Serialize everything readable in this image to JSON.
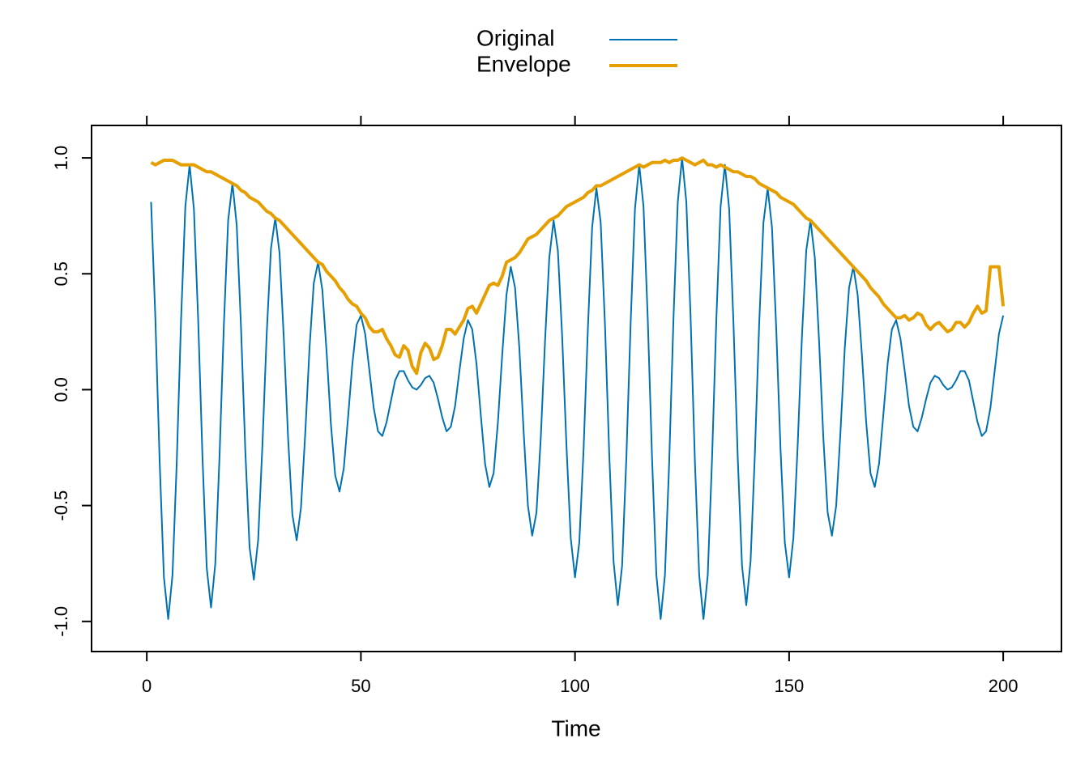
{
  "chart_data": {
    "type": "line",
    "xlabel": "Time",
    "xlim": [
      -12.9,
      213.6
    ],
    "ylim": [
      -1.13,
      1.14
    ],
    "xticks": [
      0,
      50,
      100,
      150,
      200
    ],
    "yticks": [
      {
        "value": -1,
        "label": "-1.0"
      },
      {
        "value": -0.5,
        "label": "-0.5"
      },
      {
        "value": 0,
        "label": "0.0"
      },
      {
        "value": 0.5,
        "label": "0.5"
      },
      {
        "value": 1,
        "label": "1.0"
      }
    ],
    "x": [
      1,
      2,
      3,
      4,
      5,
      6,
      7,
      8,
      9,
      10,
      11,
      12,
      13,
      14,
      15,
      16,
      17,
      18,
      19,
      20,
      21,
      22,
      23,
      24,
      25,
      26,
      27,
      28,
      29,
      30,
      31,
      32,
      33,
      34,
      35,
      36,
      37,
      38,
      39,
      40,
      41,
      42,
      43,
      44,
      45,
      46,
      47,
      48,
      49,
      50,
      51,
      52,
      53,
      54,
      55,
      56,
      57,
      58,
      59,
      60,
      61,
      62,
      63,
      64,
      65,
      66,
      67,
      68,
      69,
      70,
      71,
      72,
      73,
      74,
      75,
      76,
      77,
      78,
      79,
      80,
      81,
      82,
      83,
      84,
      85,
      86,
      87,
      88,
      89,
      90,
      91,
      92,
      93,
      94,
      95,
      96,
      97,
      98,
      99,
      100,
      101,
      102,
      103,
      104,
      105,
      106,
      107,
      108,
      109,
      110,
      111,
      112,
      113,
      114,
      115,
      116,
      117,
      118,
      119,
      120,
      121,
      122,
      123,
      124,
      125,
      126,
      127,
      128,
      129,
      130,
      131,
      132,
      133,
      134,
      135,
      136,
      137,
      138,
      139,
      140,
      141,
      142,
      143,
      144,
      145,
      146,
      147,
      148,
      149,
      150,
      151,
      152,
      153,
      154,
      155,
      156,
      157,
      158,
      159,
      160,
      161,
      162,
      163,
      164,
      165,
      166,
      167,
      168,
      169,
      170,
      171,
      172,
      173,
      174,
      175,
      176,
      177,
      178,
      179,
      180,
      181,
      182,
      183,
      184,
      185,
      186,
      187,
      188,
      189,
      190,
      191,
      192,
      193,
      194,
      195,
      196,
      197,
      198,
      199,
      200
    ],
    "series": [
      {
        "name": "Original",
        "color": "#0072B2",
        "values": [
          0.81,
          0.31,
          -0.31,
          -0.81,
          -0.99,
          -0.8,
          -0.31,
          0.3,
          0.79,
          0.97,
          0.78,
          0.3,
          -0.29,
          -0.77,
          -0.94,
          -0.75,
          -0.28,
          0.28,
          0.73,
          0.89,
          0.71,
          0.27,
          -0.26,
          -0.68,
          -0.82,
          -0.65,
          -0.24,
          0.24,
          0.61,
          0.74,
          0.59,
          0.22,
          -0.21,
          -0.54,
          -0.65,
          -0.51,
          -0.19,
          0.18,
          0.46,
          0.55,
          0.43,
          0.16,
          -0.15,
          -0.37,
          -0.44,
          -0.34,
          -0.12,
          0.11,
          0.28,
          0.32,
          0.24,
          0.08,
          -0.08,
          -0.18,
          -0.2,
          -0.14,
          -0.05,
          0.04,
          0.08,
          0.08,
          0.04,
          0.01,
          0,
          0.02,
          0.05,
          0.06,
          0.03,
          -0.04,
          -0.12,
          -0.18,
          -0.16,
          -0.07,
          0.08,
          0.22,
          0.3,
          0.26,
          0.11,
          -0.11,
          -0.32,
          -0.42,
          -0.36,
          -0.14,
          0.15,
          0.41,
          0.53,
          0.44,
          0.18,
          -0.18,
          -0.5,
          -0.63,
          -0.53,
          -0.21,
          0.21,
          0.57,
          0.73,
          0.6,
          0.23,
          -0.24,
          -0.64,
          -0.81,
          -0.66,
          -0.26,
          0.26,
          0.7,
          0.87,
          0.72,
          0.28,
          -0.28,
          -0.74,
          -0.93,
          -0.76,
          -0.29,
          0.29,
          0.78,
          0.97,
          0.79,
          0.3,
          -0.3,
          -0.8,
          -0.99,
          -0.8,
          -0.31,
          0.31,
          0.81,
          1.0,
          0.81,
          0.31,
          -0.31,
          -0.8,
          -0.99,
          -0.8,
          -0.3,
          0.3,
          0.79,
          0.97,
          0.78,
          0.29,
          -0.29,
          -0.76,
          -0.93,
          -0.74,
          -0.28,
          0.28,
          0.72,
          0.87,
          0.7,
          0.26,
          -0.26,
          -0.66,
          -0.81,
          -0.64,
          -0.24,
          0.23,
          0.6,
          0.73,
          0.57,
          0.21,
          -0.21,
          -0.53,
          -0.63,
          -0.5,
          -0.18,
          0.18,
          0.44,
          0.53,
          0.41,
          0.15,
          -0.14,
          -0.36,
          -0.42,
          -0.32,
          -0.11,
          0.11,
          0.26,
          0.3,
          0.22,
          0.08,
          -0.07,
          -0.16,
          -0.18,
          -0.12,
          -0.04,
          0.03,
          0.06,
          0.05,
          0.02,
          0,
          0.01,
          0.04,
          0.08,
          0.08,
          0.04,
          -0.05,
          -0.14,
          -0.2,
          -0.18,
          -0.08,
          0.08,
          0.24,
          0.32
        ]
      },
      {
        "name": "Envelope",
        "color": "#E69F00",
        "values": [
          0.98,
          0.97,
          0.98,
          0.99,
          0.99,
          0.99,
          0.98,
          0.97,
          0.97,
          0.97,
          0.97,
          0.96,
          0.95,
          0.94,
          0.94,
          0.93,
          0.92,
          0.91,
          0.9,
          0.89,
          0.88,
          0.86,
          0.85,
          0.83,
          0.82,
          0.81,
          0.79,
          0.77,
          0.76,
          0.74,
          0.73,
          0.71,
          0.69,
          0.67,
          0.65,
          0.63,
          0.61,
          0.59,
          0.57,
          0.55,
          0.54,
          0.51,
          0.49,
          0.47,
          0.44,
          0.42,
          0.39,
          0.37,
          0.36,
          0.33,
          0.31,
          0.27,
          0.25,
          0.25,
          0.26,
          0.22,
          0.19,
          0.15,
          0.14,
          0.19,
          0.17,
          0.1,
          0.07,
          0.16,
          0.2,
          0.18,
          0.13,
          0.14,
          0.19,
          0.26,
          0.26,
          0.24,
          0.27,
          0.3,
          0.35,
          0.36,
          0.33,
          0.37,
          0.41,
          0.45,
          0.46,
          0.45,
          0.49,
          0.55,
          0.56,
          0.57,
          0.59,
          0.62,
          0.65,
          0.66,
          0.67,
          0.69,
          0.71,
          0.73,
          0.74,
          0.75,
          0.77,
          0.79,
          0.8,
          0.81,
          0.82,
          0.83,
          0.85,
          0.86,
          0.88,
          0.88,
          0.89,
          0.9,
          0.91,
          0.92,
          0.93,
          0.94,
          0.95,
          0.96,
          0.97,
          0.96,
          0.97,
          0.98,
          0.98,
          0.98,
          0.99,
          0.98,
          0.99,
          0.99,
          1.0,
          0.99,
          0.98,
          0.97,
          0.98,
          0.99,
          0.97,
          0.97,
          0.96,
          0.97,
          0.96,
          0.95,
          0.94,
          0.94,
          0.93,
          0.92,
          0.92,
          0.91,
          0.89,
          0.88,
          0.87,
          0.86,
          0.85,
          0.83,
          0.82,
          0.81,
          0.8,
          0.78,
          0.76,
          0.74,
          0.73,
          0.71,
          0.69,
          0.67,
          0.65,
          0.63,
          0.61,
          0.59,
          0.57,
          0.55,
          0.53,
          0.51,
          0.49,
          0.47,
          0.44,
          0.42,
          0.4,
          0.37,
          0.35,
          0.33,
          0.31,
          0.31,
          0.32,
          0.3,
          0.31,
          0.33,
          0.32,
          0.28,
          0.26,
          0.28,
          0.29,
          0.27,
          0.25,
          0.26,
          0.29,
          0.29,
          0.27,
          0.29,
          0.33,
          0.36,
          0.33,
          0.34,
          0.53,
          0.53,
          0.53,
          0.36
        ]
      }
    ]
  }
}
